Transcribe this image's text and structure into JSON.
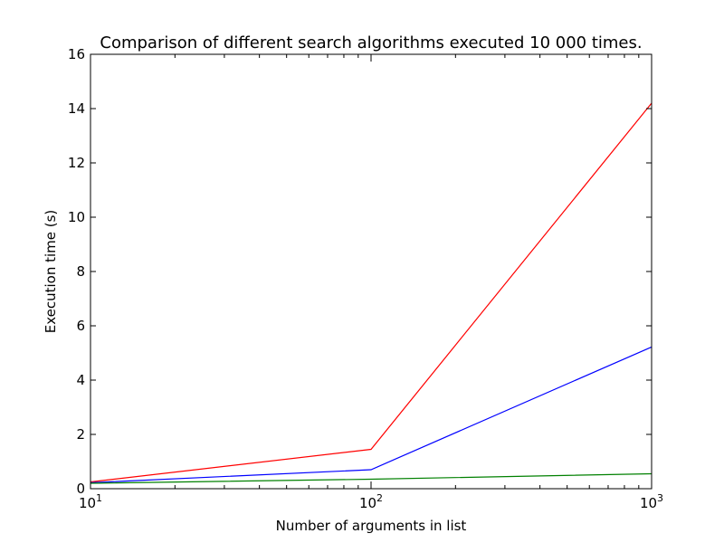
{
  "chart_data": {
    "type": "line",
    "title": "Comparison of different search algorithms executed 10 000 times.",
    "xlabel": "Number of arguments in list",
    "ylabel": "Execution time (s)",
    "xscale": "log",
    "xlim": [
      10,
      1000
    ],
    "ylim": [
      0,
      16
    ],
    "x_ticks": [
      {
        "base": "10",
        "exp": "1"
      },
      {
        "base": "10",
        "exp": "2"
      },
      {
        "base": "10",
        "exp": "3"
      }
    ],
    "y_ticks": [
      "0",
      "2",
      "4",
      "6",
      "8",
      "10",
      "12",
      "14",
      "16"
    ],
    "grid": false,
    "legend": "none",
    "x": [
      10,
      100,
      1000
    ],
    "series": [
      {
        "color": "#ff0000",
        "values": [
          0.25,
          1.45,
          14.2
        ]
      },
      {
        "color": "#0000ff",
        "values": [
          0.22,
          0.7,
          5.22
        ]
      },
      {
        "color": "#008000",
        "values": [
          0.2,
          0.35,
          0.55
        ]
      }
    ]
  }
}
